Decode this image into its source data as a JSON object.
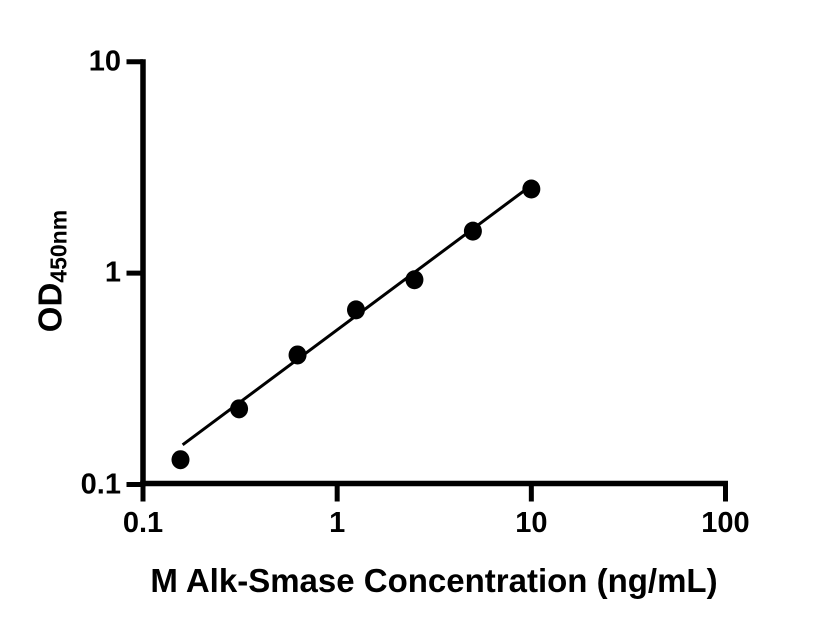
{
  "chart_data": {
    "type": "scatter",
    "title": "",
    "xlabel": "M Alk-Smase Concentration (ng/mL)",
    "ylabel": {
      "main": "OD",
      "sub": "450nm"
    },
    "x_scale": "log10",
    "y_scale": "log10",
    "xlim": [
      0.1,
      100
    ],
    "ylim": [
      0.1,
      10
    ],
    "x_ticks": [
      0.1,
      1,
      10,
      100
    ],
    "x_tick_labels": [
      "0.1",
      "1",
      "10",
      "100"
    ],
    "y_ticks": [
      0.1,
      1,
      10
    ],
    "y_tick_labels": [
      "0.1",
      "1",
      "10"
    ],
    "grid": false,
    "legend": "none",
    "points": [
      {
        "x": 0.156,
        "y": 0.131
      },
      {
        "x": 0.3125,
        "y": 0.228
      },
      {
        "x": 0.625,
        "y": 0.41
      },
      {
        "x": 1.25,
        "y": 0.67
      },
      {
        "x": 2.5,
        "y": 0.93
      },
      {
        "x": 5,
        "y": 1.58
      },
      {
        "x": 10,
        "y": 2.5
      }
    ],
    "trend_line": {
      "x1": 0.16,
      "y1": 0.154,
      "x2": 10,
      "y2": 2.6
    },
    "marker_color": "#000000",
    "line_color": "#000000",
    "axis_color": "#000000",
    "background_color": "#ffffff"
  }
}
